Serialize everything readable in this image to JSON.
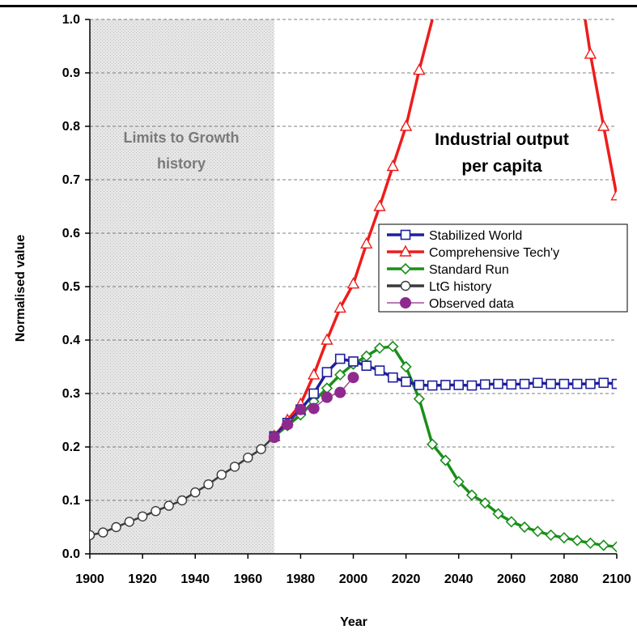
{
  "chart_data": {
    "type": "line",
    "title": "",
    "xlabel": "Year",
    "ylabel": "Normalised value",
    "xlim": [
      1900,
      2100
    ],
    "ylim": [
      0,
      1.0
    ],
    "x_ticks": [
      "1900",
      "1920",
      "1940",
      "1960",
      "1980",
      "2000",
      "2020",
      "2040",
      "2060",
      "2080",
      "2100"
    ],
    "y_ticks": [
      "0.0",
      "0.1",
      "0.2",
      "0.3",
      "0.4",
      "0.5",
      "0.6",
      "0.7",
      "0.8",
      "0.9",
      "1.0"
    ],
    "grid": "horizontal dashed",
    "legend_position": "right-center",
    "annotations": {
      "shaded_region": {
        "from": 1900,
        "to": 1970,
        "lines": [
          "Limits to Growth",
          "history"
        ]
      },
      "panel_label": [
        "Industrial output",
        "per capita"
      ]
    },
    "series": [
      {
        "name": "Stabilized World",
        "color": "#1f1f9e",
        "marker": "square",
        "x": [
          1970,
          1975,
          1980,
          1985,
          1990,
          1995,
          2000,
          2005,
          2010,
          2015,
          2020,
          2025,
          2030,
          2035,
          2040,
          2045,
          2050,
          2055,
          2060,
          2065,
          2070,
          2075,
          2080,
          2085,
          2090,
          2095,
          2100
        ],
        "y": [
          0.22,
          0.245,
          0.27,
          0.3,
          0.34,
          0.365,
          0.36,
          0.352,
          0.343,
          0.33,
          0.322,
          0.316,
          0.315,
          0.316,
          0.316,
          0.315,
          0.317,
          0.318,
          0.317,
          0.318,
          0.32,
          0.318,
          0.318,
          0.318,
          0.318,
          0.32,
          0.318
        ]
      },
      {
        "name": "Comprehensive Tech'y",
        "color": "#ee1c1c",
        "marker": "triangle",
        "x": [
          1970,
          1975,
          1980,
          1985,
          1990,
          1995,
          2000,
          2005,
          2010,
          2015,
          2020,
          2025,
          2030,
          2088,
          2090,
          2095,
          2100
        ],
        "y": [
          0.22,
          0.25,
          0.28,
          0.335,
          0.4,
          0.46,
          0.505,
          0.58,
          0.65,
          0.725,
          0.8,
          0.905,
          1.0,
          1.0,
          0.935,
          0.8,
          0.67
        ]
      },
      {
        "name": "Standard Run",
        "color": "#1a8f1a",
        "marker": "diamond",
        "x": [
          1970,
          1975,
          1980,
          1985,
          1990,
          1995,
          2000,
          2005,
          2010,
          2015,
          2020,
          2025,
          2030,
          2035,
          2040,
          2045,
          2050,
          2055,
          2060,
          2065,
          2070,
          2075,
          2080,
          2085,
          2090,
          2095,
          2100
        ],
        "y": [
          0.22,
          0.24,
          0.26,
          0.285,
          0.31,
          0.335,
          0.355,
          0.37,
          0.385,
          0.388,
          0.35,
          0.29,
          0.205,
          0.175,
          0.135,
          0.11,
          0.095,
          0.075,
          0.06,
          0.05,
          0.042,
          0.035,
          0.03,
          0.025,
          0.02,
          0.016,
          0.013
        ]
      },
      {
        "name": "LtG history",
        "color": "#3a3a3a",
        "marker": "circle-open",
        "x": [
          1900,
          1905,
          1910,
          1915,
          1920,
          1925,
          1930,
          1935,
          1940,
          1945,
          1950,
          1955,
          1960,
          1965,
          1970
        ],
        "y": [
          0.035,
          0.04,
          0.05,
          0.06,
          0.07,
          0.08,
          0.09,
          0.1,
          0.115,
          0.13,
          0.148,
          0.163,
          0.18,
          0.196,
          0.22
        ]
      },
      {
        "name": "Observed data",
        "color": "#8e2a8e",
        "marker": "circle-filled",
        "x": [
          1970,
          1975,
          1980,
          1985,
          1990,
          1995,
          2000
        ],
        "y": [
          0.218,
          0.242,
          0.27,
          0.272,
          0.293,
          0.302,
          0.33
        ]
      }
    ]
  }
}
